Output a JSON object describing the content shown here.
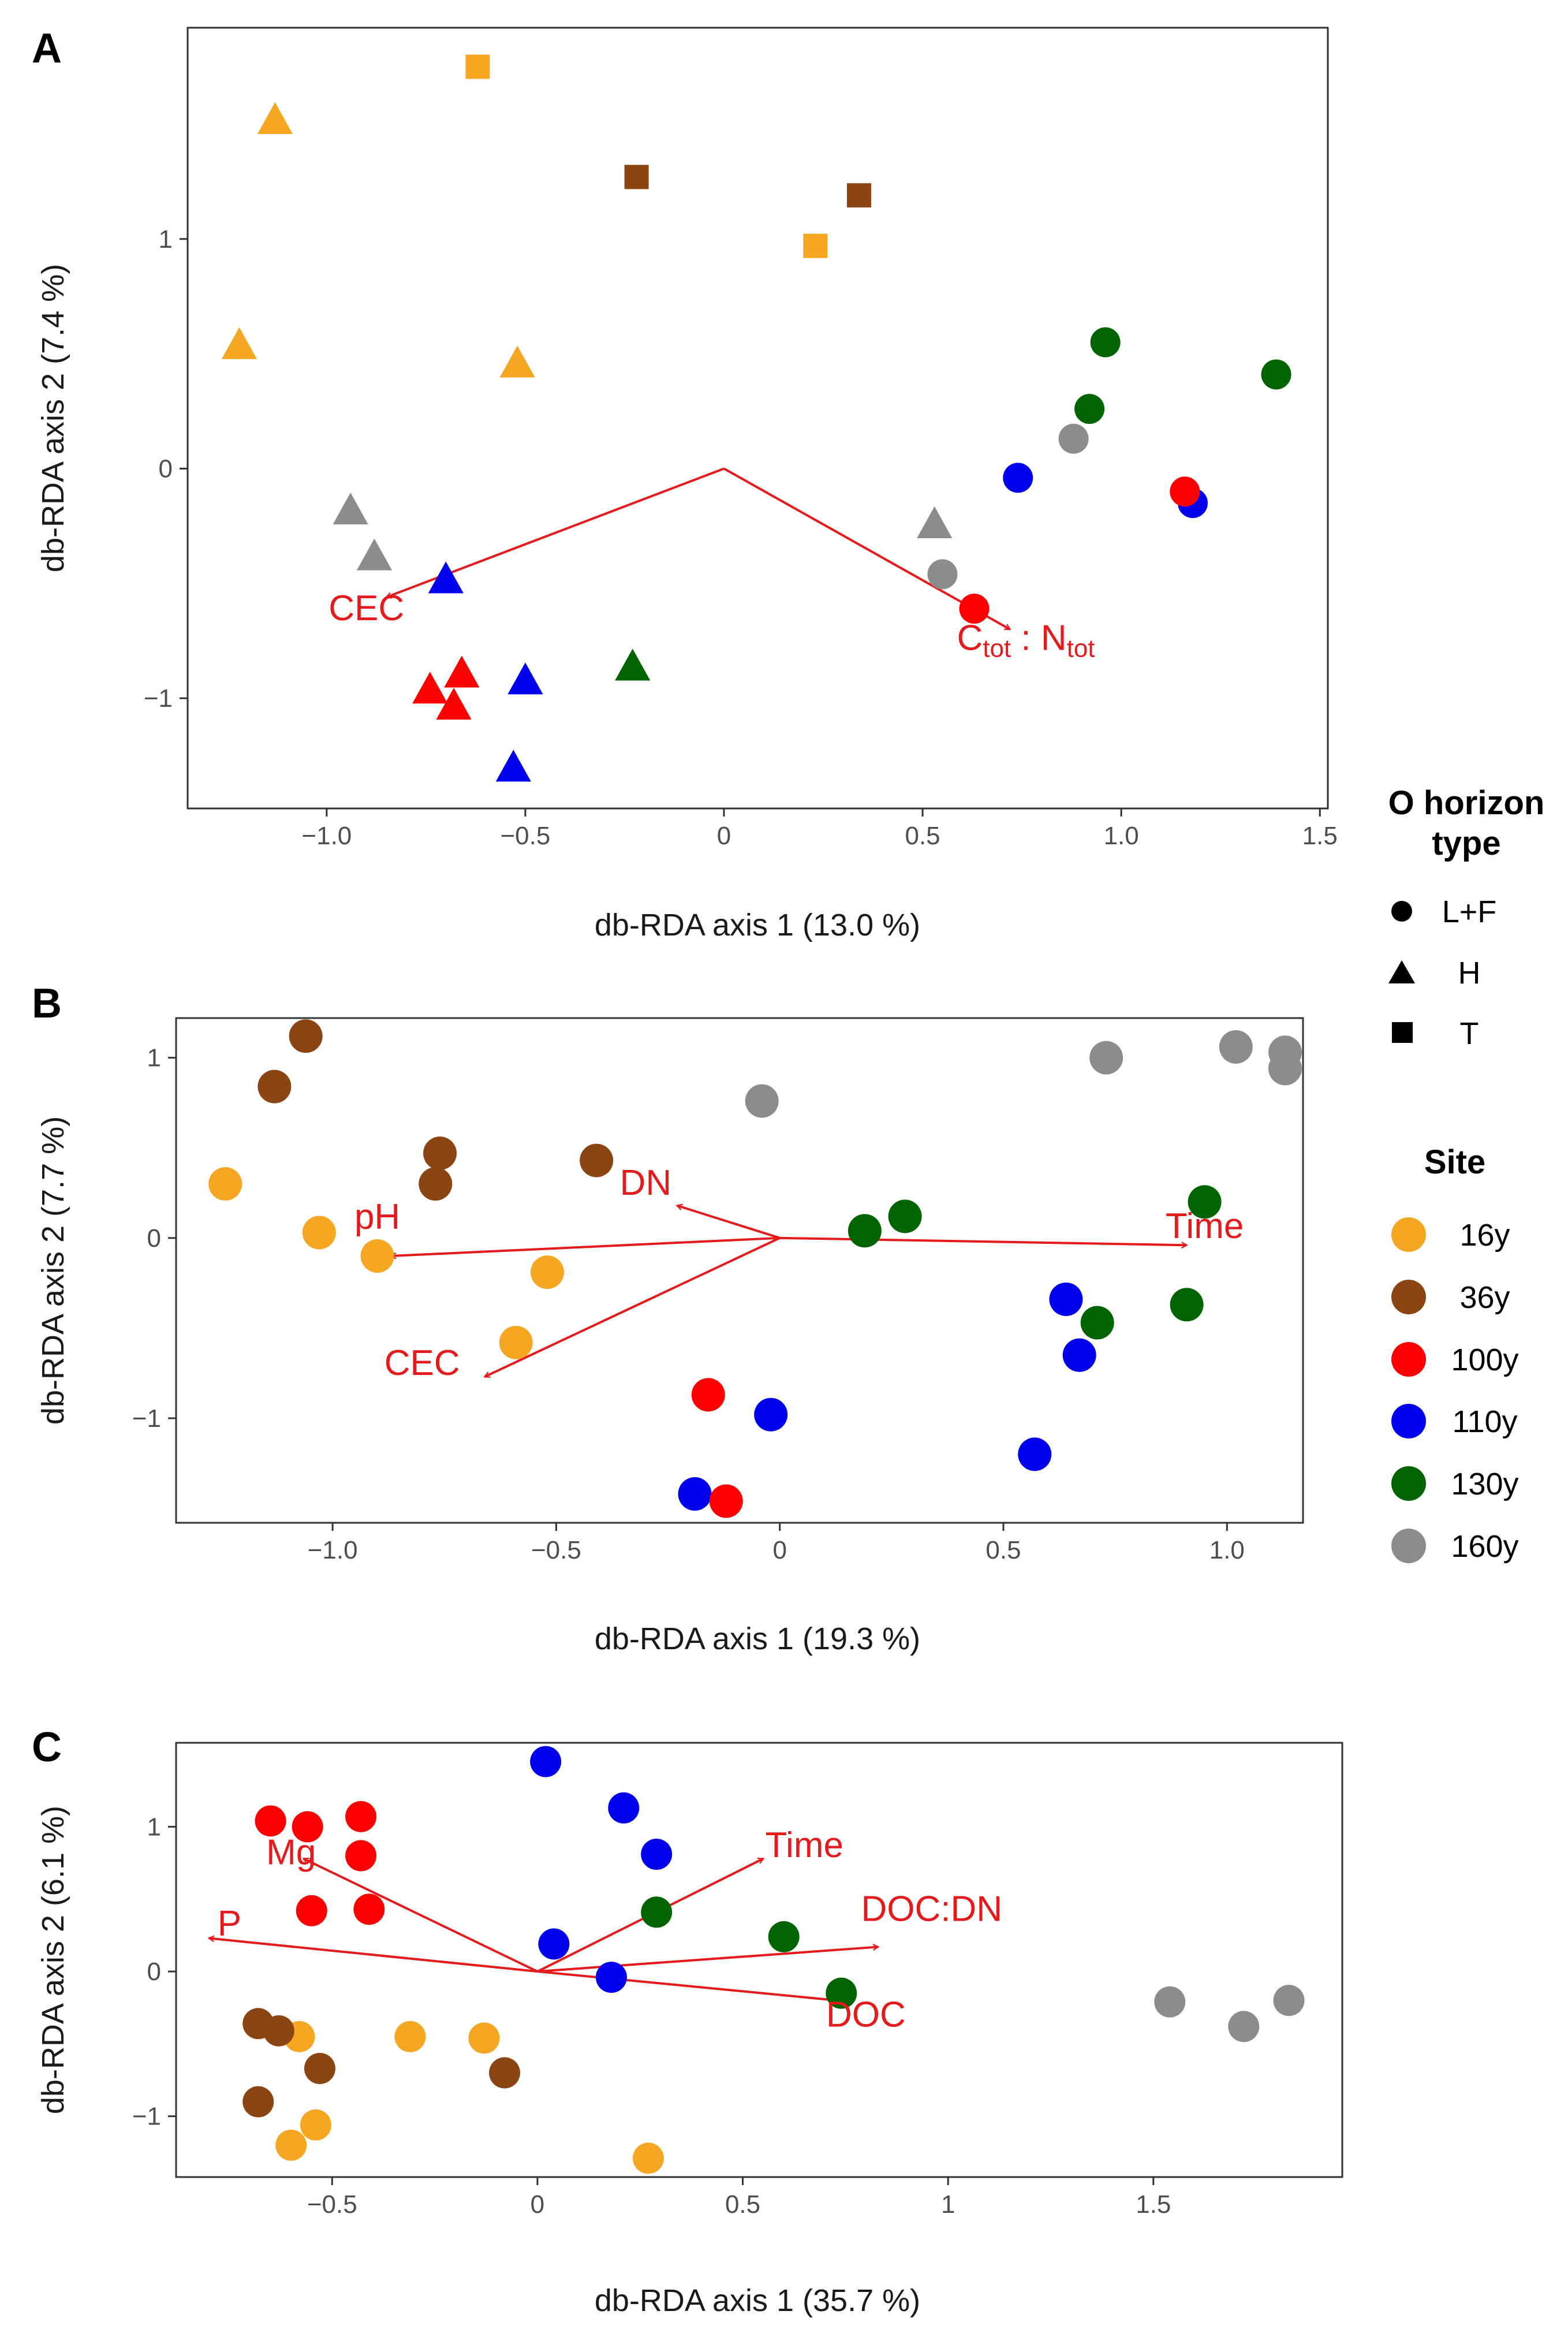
{
  "colors": {
    "arrow": "#e41a1c",
    "frame": "#333333",
    "16y": "#F5A623",
    "36y": "#8B4513",
    "100y": "#FF0000",
    "110y": "#0000EE",
    "130y": "#006400",
    "160y": "#8C8C8C"
  },
  "legend": {
    "horizon_title_line1": "O horizon",
    "horizon_title_line2": "type",
    "horizon_items": [
      {
        "shape": "circle",
        "label": "L+F"
      },
      {
        "shape": "triangle",
        "label": "H"
      },
      {
        "shape": "square",
        "label": "T"
      }
    ],
    "site_title": "Site",
    "site_items": [
      "16y",
      "36y",
      "100y",
      "110y",
      "130y",
      "160y"
    ]
  },
  "chart_data": [
    {
      "type": "scatter",
      "panel": "A",
      "xlabel": "db-RDA axis 1 (13.0 %)",
      "ylabel": "db-RDA axis 2 (7.4 %)",
      "xlim": [
        -1.35,
        1.52
      ],
      "ylim": [
        -1.48,
        1.92
      ],
      "xticks": [
        -1.0,
        -0.5,
        0,
        0.5,
        1.0,
        1.5
      ],
      "xtick_labels": [
        "−1.0",
        "−0.5",
        "0",
        "0.5",
        "1.0",
        "1.5"
      ],
      "yticks": [
        -1,
        0,
        1
      ],
      "ytick_labels": [
        "−1",
        "0",
        "1"
      ],
      "points": [
        {
          "x": -0.62,
          "y": 1.75,
          "site": "16y",
          "shape": "square"
        },
        {
          "x": 0.23,
          "y": 0.97,
          "site": "16y",
          "shape": "square"
        },
        {
          "x": -1.13,
          "y": 1.51,
          "site": "16y",
          "shape": "triangle"
        },
        {
          "x": -1.22,
          "y": 0.53,
          "site": "16y",
          "shape": "triangle"
        },
        {
          "x": -0.52,
          "y": 0.45,
          "site": "16y",
          "shape": "triangle"
        },
        {
          "x": -0.22,
          "y": 1.27,
          "site": "36y",
          "shape": "square"
        },
        {
          "x": 0.34,
          "y": 1.19,
          "site": "36y",
          "shape": "square"
        },
        {
          "x": -0.94,
          "y": -0.19,
          "site": "160y",
          "shape": "triangle"
        },
        {
          "x": -0.88,
          "y": -0.39,
          "site": "160y",
          "shape": "triangle"
        },
        {
          "x": 0.53,
          "y": -0.25,
          "site": "160y",
          "shape": "triangle"
        },
        {
          "x": 0.55,
          "y": -0.46,
          "site": "160y",
          "shape": "circle"
        },
        {
          "x": 0.88,
          "y": 0.13,
          "site": "160y",
          "shape": "circle"
        },
        {
          "x": -0.7,
          "y": -0.49,
          "site": "110y",
          "shape": "triangle"
        },
        {
          "x": -0.5,
          "y": -0.93,
          "site": "110y",
          "shape": "triangle"
        },
        {
          "x": -0.53,
          "y": -1.31,
          "site": "110y",
          "shape": "triangle"
        },
        {
          "x": 0.74,
          "y": -0.04,
          "site": "110y",
          "shape": "circle"
        },
        {
          "x": 1.18,
          "y": -0.15,
          "site": "110y",
          "shape": "circle"
        },
        {
          "x": -0.74,
          "y": -0.97,
          "site": "100y",
          "shape": "triangle"
        },
        {
          "x": -0.66,
          "y": -0.9,
          "site": "100y",
          "shape": "triangle"
        },
        {
          "x": -0.68,
          "y": -1.04,
          "site": "100y",
          "shape": "triangle"
        },
        {
          "x": 0.63,
          "y": -0.61,
          "site": "100y",
          "shape": "circle"
        },
        {
          "x": 1.16,
          "y": -0.1,
          "site": "100y",
          "shape": "circle"
        },
        {
          "x": -0.23,
          "y": -0.87,
          "site": "130y",
          "shape": "triangle"
        },
        {
          "x": 0.96,
          "y": 0.55,
          "site": "130y",
          "shape": "circle"
        },
        {
          "x": 0.92,
          "y": 0.26,
          "site": "130y",
          "shape": "circle"
        },
        {
          "x": 1.39,
          "y": 0.41,
          "site": "130y",
          "shape": "circle"
        }
      ],
      "arrows": [
        {
          "x": -0.85,
          "y": -0.56,
          "label_parts": [
            {
              "t": "CEC"
            }
          ],
          "lx": -0.9,
          "ly": -0.66
        },
        {
          "x": 0.72,
          "y": -0.7,
          "label_parts": [
            {
              "t": "C"
            },
            {
              "t": "tot",
              "sub": true
            },
            {
              "t": " : N"
            },
            {
              "t": "tot",
              "sub": true
            }
          ],
          "lx": 0.76,
          "ly": -0.79
        }
      ]
    },
    {
      "type": "scatter",
      "panel": "B",
      "xlabel": "db-RDA axis 1 (19.3 %)",
      "ylabel": "db-RDA axis 2 (7.7 %)",
      "xlim": [
        -1.35,
        1.17
      ],
      "ylim": [
        -1.58,
        1.22
      ],
      "xticks": [
        -1.0,
        -0.5,
        0,
        0.5,
        1.0
      ],
      "xtick_labels": [
        "−1.0",
        "−0.5",
        "0",
        "0.5",
        "1.0"
      ],
      "yticks": [
        -1,
        0,
        1
      ],
      "ytick_labels": [
        "−1",
        "0",
        "1"
      ],
      "points": [
        {
          "x": -1.24,
          "y": 0.3,
          "site": "16y",
          "shape": "circle"
        },
        {
          "x": -1.03,
          "y": 0.03,
          "site": "16y",
          "shape": "circle"
        },
        {
          "x": -0.9,
          "y": -0.1,
          "site": "16y",
          "shape": "circle"
        },
        {
          "x": -0.52,
          "y": -0.19,
          "site": "16y",
          "shape": "circle"
        },
        {
          "x": -0.59,
          "y": -0.58,
          "site": "16y",
          "shape": "circle"
        },
        {
          "x": -1.06,
          "y": 1.12,
          "site": "36y",
          "shape": "circle"
        },
        {
          "x": -1.13,
          "y": 0.84,
          "site": "36y",
          "shape": "circle"
        },
        {
          "x": -0.76,
          "y": 0.47,
          "site": "36y",
          "shape": "circle"
        },
        {
          "x": -0.77,
          "y": 0.3,
          "site": "36y",
          "shape": "circle"
        },
        {
          "x": -0.41,
          "y": 0.43,
          "site": "36y",
          "shape": "circle"
        },
        {
          "x": -0.04,
          "y": 0.76,
          "site": "160y",
          "shape": "circle"
        },
        {
          "x": 0.73,
          "y": 1.0,
          "site": "160y",
          "shape": "circle"
        },
        {
          "x": 1.02,
          "y": 1.06,
          "site": "160y",
          "shape": "circle"
        },
        {
          "x": 1.13,
          "y": 1.03,
          "site": "160y",
          "shape": "circle"
        },
        {
          "x": 1.13,
          "y": 0.94,
          "site": "160y",
          "shape": "circle"
        },
        {
          "x": 0.19,
          "y": 0.04,
          "site": "130y",
          "shape": "circle"
        },
        {
          "x": 0.28,
          "y": 0.12,
          "site": "130y",
          "shape": "circle"
        },
        {
          "x": 0.95,
          "y": 0.2,
          "site": "130y",
          "shape": "circle"
        },
        {
          "x": 0.71,
          "y": -0.47,
          "site": "130y",
          "shape": "circle"
        },
        {
          "x": 0.91,
          "y": -0.37,
          "site": "130y",
          "shape": "circle"
        },
        {
          "x": 0.64,
          "y": -0.34,
          "site": "110y",
          "shape": "circle"
        },
        {
          "x": 0.67,
          "y": -0.65,
          "site": "110y",
          "shape": "circle"
        },
        {
          "x": 0.57,
          "y": -1.2,
          "site": "110y",
          "shape": "circle"
        },
        {
          "x": -0.02,
          "y": -0.98,
          "site": "110y",
          "shape": "circle"
        },
        {
          "x": -0.19,
          "y": -1.42,
          "site": "110y",
          "shape": "circle"
        },
        {
          "x": -0.16,
          "y": -0.87,
          "site": "100y",
          "shape": "circle"
        },
        {
          "x": -0.12,
          "y": -1.46,
          "site": "100y",
          "shape": "circle"
        }
      ],
      "arrows": [
        {
          "x": -0.23,
          "y": 0.18,
          "label_parts": [
            {
              "t": "DN"
            }
          ],
          "lx": -0.3,
          "ly": 0.24
        },
        {
          "x": -0.87,
          "y": -0.1,
          "label_parts": [
            {
              "t": "pH"
            }
          ],
          "lx": -0.9,
          "ly": 0.05
        },
        {
          "x": -0.66,
          "y": -0.77,
          "label_parts": [
            {
              "t": "CEC"
            }
          ],
          "lx": -0.8,
          "ly": -0.76
        },
        {
          "x": 0.91,
          "y": -0.04,
          "label_parts": [
            {
              "t": "Time"
            }
          ],
          "lx": 0.95,
          "ly": 0.0
        }
      ]
    },
    {
      "type": "scatter",
      "panel": "C",
      "xlabel": "db-RDA axis 1 (35.7 %)",
      "ylabel": "db-RDA axis 2 (6.1 %)",
      "xlim": [
        -0.88,
        1.96
      ],
      "ylim": [
        -1.42,
        1.58
      ],
      "xticks": [
        -0.5,
        0,
        0.5,
        1,
        1.5
      ],
      "xtick_labels": [
        "−0.5",
        "0",
        "0.5",
        "1",
        "1.5"
      ],
      "yticks": [
        -1,
        0,
        1
      ],
      "ytick_labels": [
        "−1",
        "0",
        "1"
      ],
      "points": [
        {
          "x": -0.58,
          "y": -0.45,
          "site": "16y",
          "shape": "circle"
        },
        {
          "x": -0.31,
          "y": -0.45,
          "site": "16y",
          "shape": "circle"
        },
        {
          "x": -0.13,
          "y": -0.46,
          "site": "16y",
          "shape": "circle"
        },
        {
          "x": -0.54,
          "y": -1.06,
          "site": "16y",
          "shape": "circle"
        },
        {
          "x": -0.6,
          "y": -1.2,
          "site": "16y",
          "shape": "circle"
        },
        {
          "x": 0.27,
          "y": -1.29,
          "site": "16y",
          "shape": "circle"
        },
        {
          "x": -0.68,
          "y": -0.36,
          "site": "36y",
          "shape": "circle"
        },
        {
          "x": -0.63,
          "y": -0.41,
          "site": "36y",
          "shape": "circle"
        },
        {
          "x": -0.53,
          "y": -0.67,
          "site": "36y",
          "shape": "circle"
        },
        {
          "x": -0.68,
          "y": -0.9,
          "site": "36y",
          "shape": "circle"
        },
        {
          "x": -0.08,
          "y": -0.7,
          "site": "36y",
          "shape": "circle"
        },
        {
          "x": -0.65,
          "y": 1.04,
          "site": "100y",
          "shape": "circle"
        },
        {
          "x": -0.56,
          "y": 1.0,
          "site": "100y",
          "shape": "circle"
        },
        {
          "x": -0.43,
          "y": 1.07,
          "site": "100y",
          "shape": "circle"
        },
        {
          "x": -0.43,
          "y": 0.8,
          "site": "100y",
          "shape": "circle"
        },
        {
          "x": -0.55,
          "y": 0.42,
          "site": "100y",
          "shape": "circle"
        },
        {
          "x": -0.41,
          "y": 0.43,
          "site": "100y",
          "shape": "circle"
        },
        {
          "x": 0.02,
          "y": 1.45,
          "site": "110y",
          "shape": "circle"
        },
        {
          "x": 0.21,
          "y": 1.13,
          "site": "110y",
          "shape": "circle"
        },
        {
          "x": 0.29,
          "y": 0.81,
          "site": "110y",
          "shape": "circle"
        },
        {
          "x": 0.04,
          "y": 0.19,
          "site": "110y",
          "shape": "circle"
        },
        {
          "x": 0.18,
          "y": -0.04,
          "site": "110y",
          "shape": "circle"
        },
        {
          "x": 0.29,
          "y": 0.41,
          "site": "130y",
          "shape": "circle"
        },
        {
          "x": 0.6,
          "y": 0.24,
          "site": "130y",
          "shape": "circle"
        },
        {
          "x": 0.74,
          "y": -0.15,
          "site": "130y",
          "shape": "circle"
        },
        {
          "x": 1.54,
          "y": -0.21,
          "site": "160y",
          "shape": "circle"
        },
        {
          "x": 1.72,
          "y": -0.38,
          "site": "160y",
          "shape": "circle"
        },
        {
          "x": 1.83,
          "y": -0.2,
          "site": "160y",
          "shape": "circle"
        }
      ],
      "arrows": [
        {
          "x": -0.57,
          "y": 0.78,
          "label_parts": [
            {
              "t": "Mg"
            }
          ],
          "lx": -0.6,
          "ly": 0.74
        },
        {
          "x": -0.8,
          "y": 0.23,
          "label_parts": [
            {
              "t": "P"
            }
          ],
          "lx": -0.75,
          "ly": 0.25
        },
        {
          "x": 0.55,
          "y": 0.78,
          "label_parts": [
            {
              "t": "Time"
            }
          ],
          "lx": 0.65,
          "ly": 0.79
        },
        {
          "x": 0.83,
          "y": 0.17,
          "label_parts": [
            {
              "t": "DOC:DN"
            }
          ],
          "lx": 0.96,
          "ly": 0.35
        },
        {
          "x": 0.73,
          "y": -0.2,
          "label_parts": [
            {
              "t": "DOC"
            }
          ],
          "lx": 0.8,
          "ly": -0.38
        }
      ]
    }
  ]
}
